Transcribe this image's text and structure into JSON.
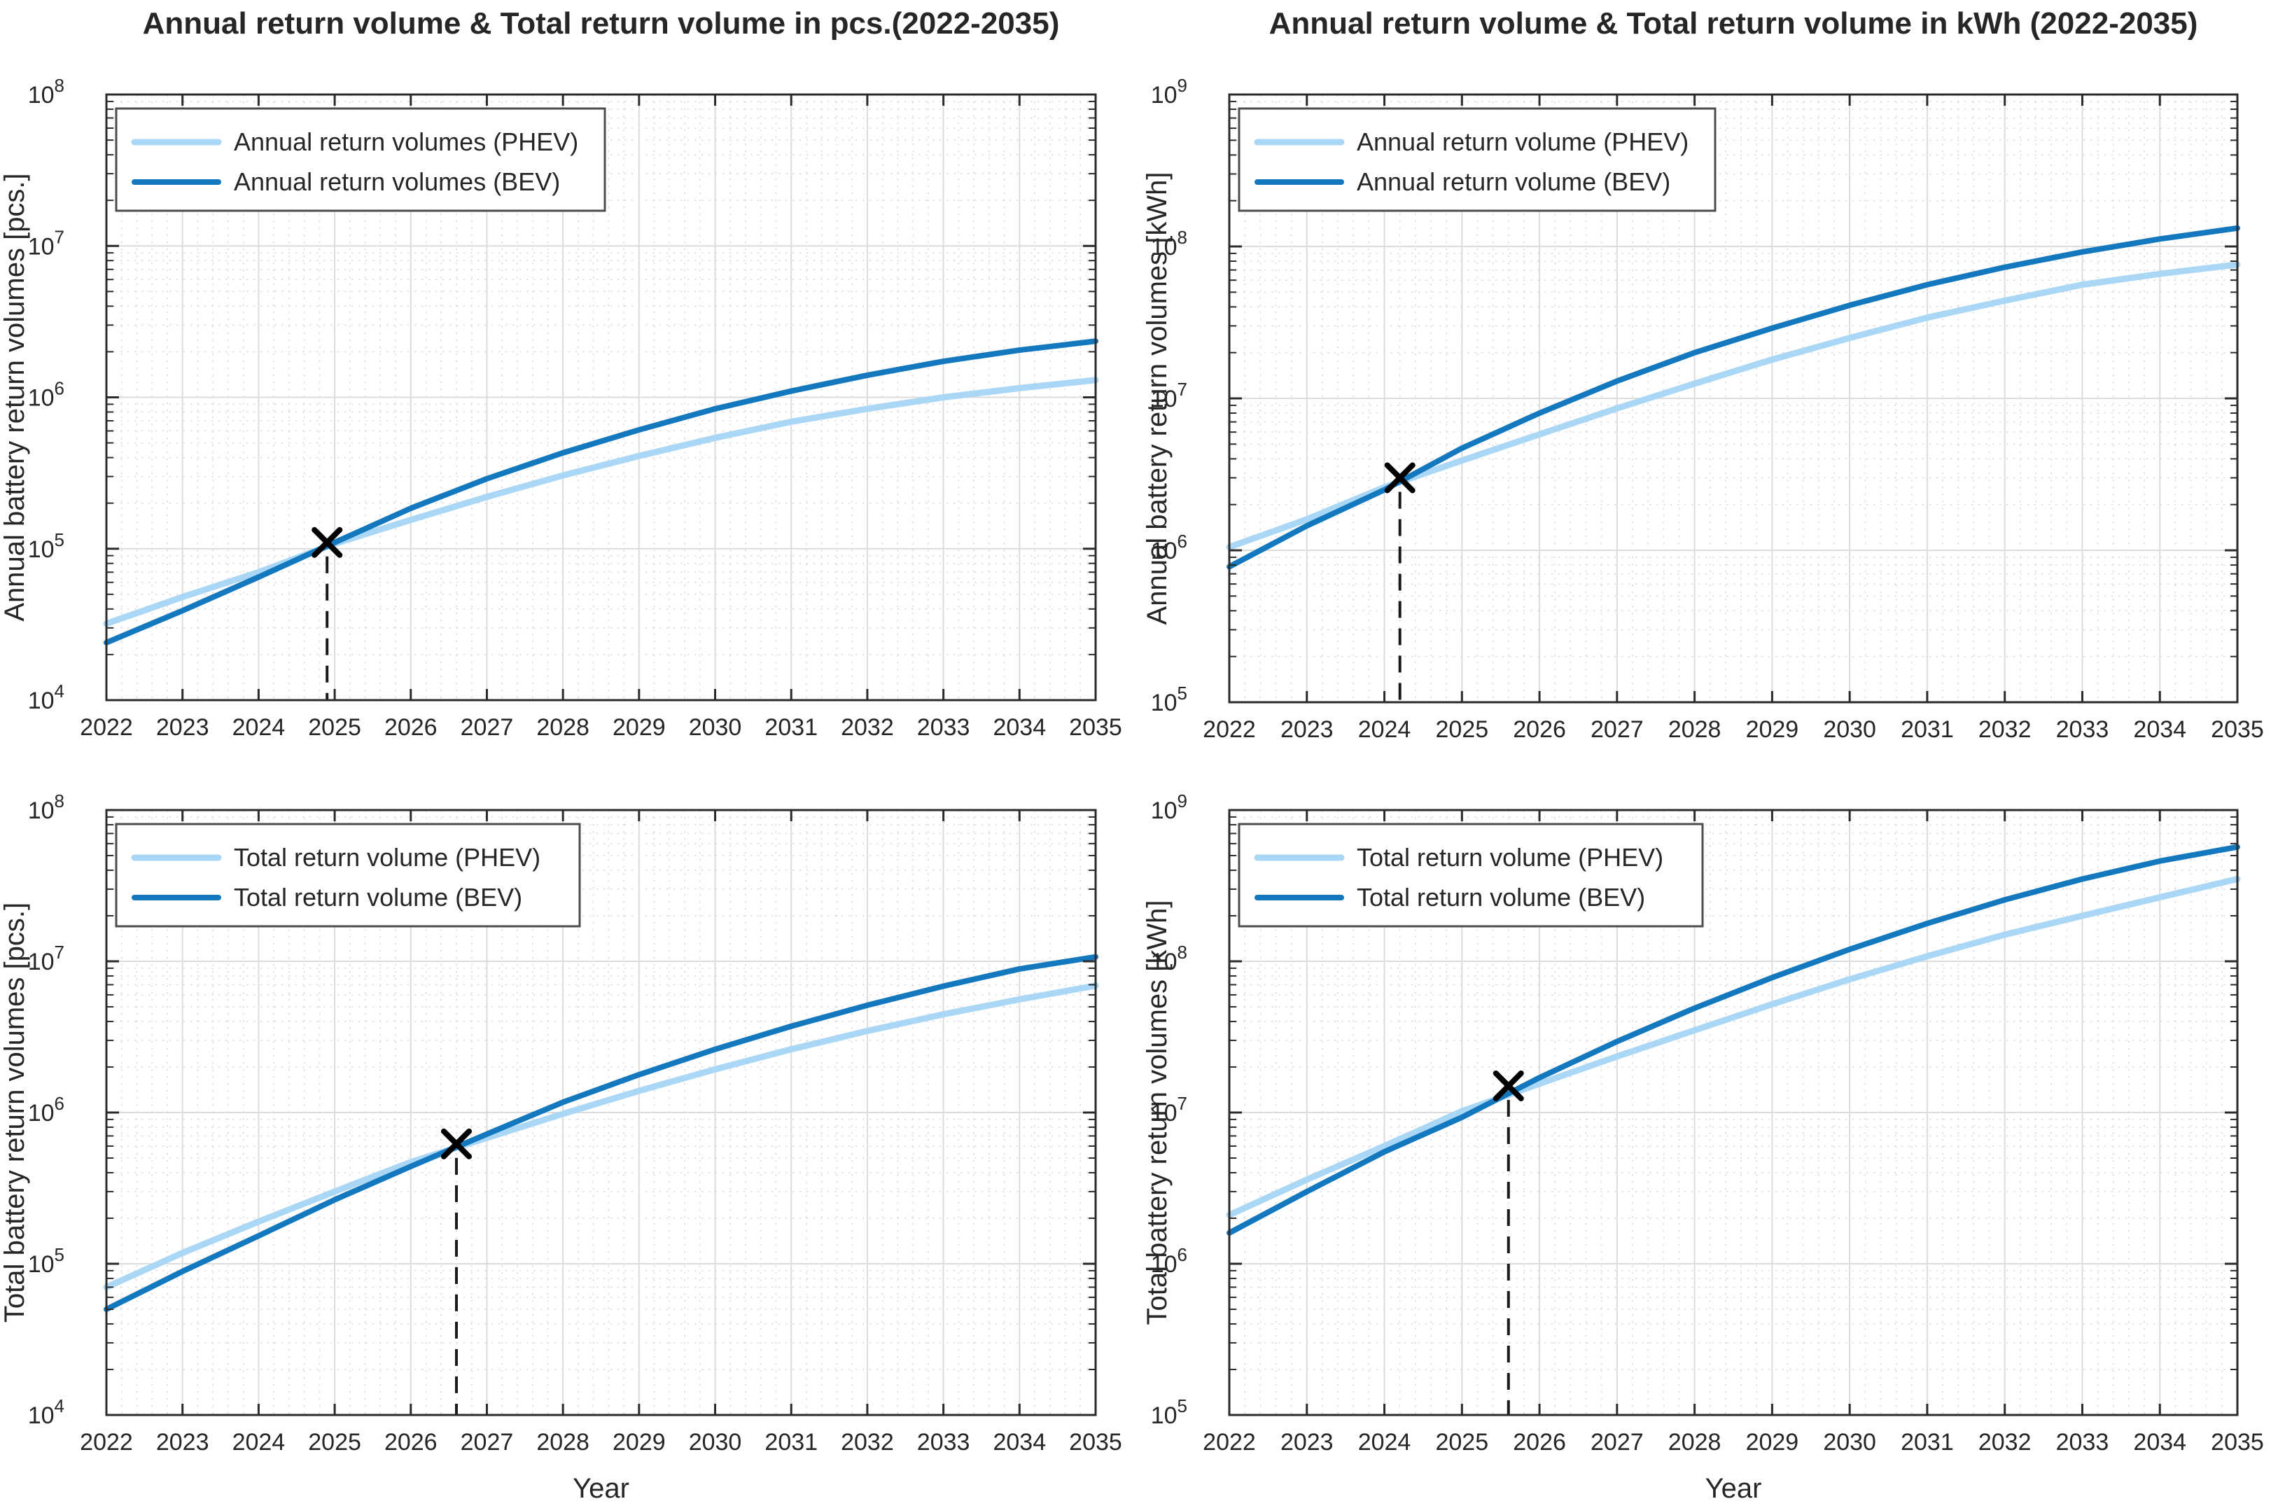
{
  "page": {
    "background": "#ffffff"
  },
  "colors": {
    "phev": "#A9D7F5",
    "bev": "#1378BE",
    "grid_major": "#dcdcdc",
    "grid_minor": "#c8c8c8",
    "axis": "#2b2b2b",
    "tick_label": "#262626",
    "annotation": "#1a1a1a",
    "legend_border": "#4d4d4d",
    "legend_fill": "#ffffff"
  },
  "chart_data": [
    {
      "id": "annual-pcs",
      "type": "line",
      "title": "Annual return volume & Total return volume in pcs.(2022-2035)",
      "xlabel": "Year",
      "ylabel": "Annual battery return volumes [pcs.]",
      "x": [
        2022,
        2023,
        2024,
        2025,
        2026,
        2027,
        2028,
        2029,
        2030,
        2031,
        2032,
        2033,
        2034,
        2035
      ],
      "xlim": [
        2022,
        2035
      ],
      "ylim_exp": [
        4,
        8
      ],
      "y_tick_exponents": [
        4,
        5,
        6,
        7,
        8
      ],
      "grid": true,
      "legend_position": "top-left",
      "series": [
        {
          "name": "Annual return volumes (PHEV)",
          "color_key": "phev",
          "values": [
            32000,
            48000,
            70000,
            108000,
            155000,
            220000,
            305000,
            410000,
            540000,
            690000,
            840000,
            1000000,
            1150000,
            1300000
          ]
        },
        {
          "name": "Annual return volumes (BEV)",
          "color_key": "bev",
          "values": [
            24000,
            39000,
            65000,
            110000,
            185000,
            290000,
            430000,
            610000,
            840000,
            1100000,
            1400000,
            1730000,
            2050000,
            2350000
          ]
        }
      ],
      "crossover": {
        "x": 2024.9,
        "y": 110000,
        "marker": "x"
      }
    },
    {
      "id": "annual-kwh",
      "type": "line",
      "title": "Annual return volume & Total return volume in kWh (2022-2035)",
      "xlabel": "Year",
      "ylabel": "Annual battery return volumes [kWh]",
      "x": [
        2022,
        2023,
        2024,
        2025,
        2026,
        2027,
        2028,
        2029,
        2030,
        2031,
        2032,
        2033,
        2034,
        2035
      ],
      "xlim": [
        2022,
        2035
      ],
      "ylim_exp": [
        5,
        9
      ],
      "y_tick_exponents": [
        5,
        6,
        7,
        8,
        9
      ],
      "grid": true,
      "legend_position": "top-left",
      "series": [
        {
          "name": "Annual return volume (PHEV)",
          "color_key": "phev",
          "values": [
            1050000,
            1600000,
            2600000,
            3900000,
            5800000,
            8600000,
            12500000,
            18000000,
            25000000,
            34000000,
            44000000,
            56000000,
            66000000,
            76000000
          ]
        },
        {
          "name": "Annual return volume (BEV)",
          "color_key": "bev",
          "values": [
            780000,
            1450000,
            2500000,
            4700000,
            8000000,
            13000000,
            20000000,
            29000000,
            41000000,
            56000000,
            73000000,
            92000000,
            112000000,
            132000000
          ]
        }
      ],
      "crossover": {
        "x": 2024.2,
        "y": 3000000,
        "marker": "x"
      }
    },
    {
      "id": "total-pcs",
      "type": "line",
      "title": "",
      "xlabel": "Year",
      "ylabel": "Total battery return volumes [pcs.]",
      "x": [
        2022,
        2023,
        2024,
        2025,
        2026,
        2027,
        2028,
        2029,
        2030,
        2031,
        2032,
        2033,
        2034,
        2035
      ],
      "xlim": [
        2022,
        2035
      ],
      "ylim_exp": [
        4,
        8
      ],
      "y_tick_exponents": [
        4,
        5,
        6,
        7,
        8
      ],
      "grid": true,
      "legend_position": "top-left",
      "series": [
        {
          "name": "Total return volume (PHEV)",
          "color_key": "phev",
          "values": [
            70000,
            118000,
            190000,
            300000,
            470000,
            680000,
            980000,
            1390000,
            1930000,
            2620000,
            3460000,
            4460000,
            5600000,
            6900000
          ]
        },
        {
          "name": "Total return volume (BEV)",
          "color_key": "bev",
          "values": [
            50000,
            89000,
            153000,
            265000,
            440000,
            720000,
            1170000,
            1780000,
            2620000,
            3720000,
            5120000,
            6850000,
            8900000,
            10700000
          ]
        }
      ],
      "crossover": {
        "x": 2026.6,
        "y": 620000,
        "marker": "x"
      }
    },
    {
      "id": "total-kwh",
      "type": "line",
      "title": "",
      "xlabel": "Year",
      "ylabel": "Total battery return volumes [kWh]",
      "x": [
        2022,
        2023,
        2024,
        2025,
        2026,
        2027,
        2028,
        2029,
        2030,
        2031,
        2032,
        2033,
        2034,
        2035
      ],
      "xlim": [
        2022,
        2035
      ],
      "ylim_exp": [
        5,
        9
      ],
      "y_tick_exponents": [
        5,
        6,
        7,
        8,
        9
      ],
      "grid": true,
      "legend_position": "top-left",
      "series": [
        {
          "name": "Total return volume (PHEV)",
          "color_key": "phev",
          "values": [
            2100000,
            3600000,
            6000000,
            10200000,
            15500000,
            23500000,
            35000000,
            52000000,
            76000000,
            108000000,
            150000000,
            200000000,
            265000000,
            350000000
          ]
        },
        {
          "name": "Total return volume (BEV)",
          "color_key": "bev",
          "values": [
            1600000,
            3000000,
            5500000,
            9300000,
            17000000,
            29500000,
            49000000,
            78000000,
            120000000,
            178000000,
            255000000,
            350000000,
            460000000,
            570000000
          ]
        }
      ],
      "crossover": {
        "x": 2025.6,
        "y": 15000000,
        "marker": "x"
      }
    }
  ]
}
